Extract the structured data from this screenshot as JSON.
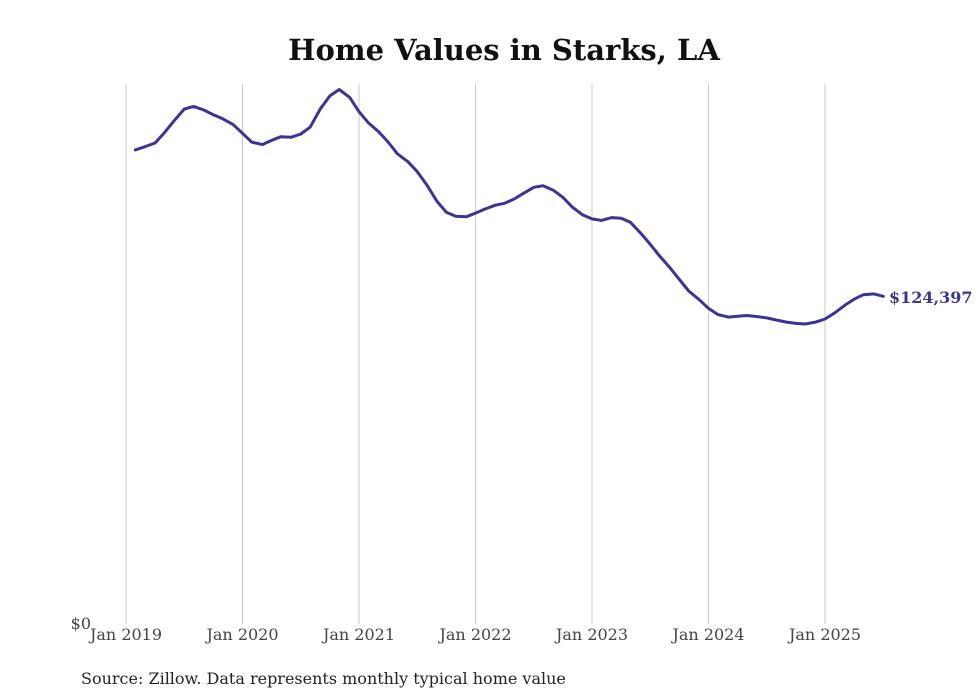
{
  "chart_data": {
    "type": "line",
    "title": "Home Values in Starks, LA",
    "xlabel": "",
    "ylabel": "",
    "y_tick_label": "$0",
    "ylim": [
      0,
      205000
    ],
    "x_ticks": [
      "Jan 2019",
      "Jan 2020",
      "Jan 2021",
      "Jan 2022",
      "Jan 2023",
      "Jan 2024",
      "Jan 2025"
    ],
    "x_tick_years": [
      2019,
      2020,
      2021,
      2022,
      2023,
      2024,
      2025
    ],
    "grid": "vertical",
    "series": [
      {
        "name": "Typical home value",
        "color": "#3b3494",
        "end_label": "$124,397",
        "points": [
          [
            2019.08,
            180000
          ],
          [
            2019.17,
            181300
          ],
          [
            2019.25,
            182600
          ],
          [
            2019.33,
            186500
          ],
          [
            2019.42,
            191400
          ],
          [
            2019.5,
            195500
          ],
          [
            2019.58,
            196500
          ],
          [
            2019.67,
            195100
          ],
          [
            2019.75,
            193300
          ],
          [
            2019.83,
            191800
          ],
          [
            2019.92,
            189600
          ],
          [
            2020.0,
            186300
          ],
          [
            2020.08,
            182900
          ],
          [
            2020.17,
            182000
          ],
          [
            2020.25,
            183600
          ],
          [
            2020.33,
            185000
          ],
          [
            2020.42,
            184800
          ],
          [
            2020.5,
            186000
          ],
          [
            2020.58,
            188600
          ],
          [
            2020.67,
            195700
          ],
          [
            2020.75,
            200500
          ],
          [
            2020.83,
            202900
          ],
          [
            2020.92,
            199900
          ],
          [
            2021.0,
            194500
          ],
          [
            2021.08,
            190300
          ],
          [
            2021.17,
            186800
          ],
          [
            2021.25,
            183000
          ],
          [
            2021.33,
            178500
          ],
          [
            2021.42,
            175500
          ],
          [
            2021.5,
            171700
          ],
          [
            2021.58,
            166800
          ],
          [
            2021.67,
            160400
          ],
          [
            2021.75,
            156300
          ],
          [
            2021.83,
            154800
          ],
          [
            2021.92,
            154600
          ],
          [
            2022.0,
            156000
          ],
          [
            2022.08,
            157500
          ],
          [
            2022.17,
            159000
          ],
          [
            2022.25,
            159700
          ],
          [
            2022.33,
            161300
          ],
          [
            2022.42,
            163700
          ],
          [
            2022.5,
            165800
          ],
          [
            2022.58,
            166400
          ],
          [
            2022.67,
            164600
          ],
          [
            2022.75,
            162000
          ],
          [
            2022.83,
            158300
          ],
          [
            2022.92,
            155300
          ],
          [
            2023.0,
            153800
          ],
          [
            2023.08,
            153200
          ],
          [
            2023.17,
            154300
          ],
          [
            2023.25,
            154000
          ],
          [
            2023.33,
            152500
          ],
          [
            2023.42,
            148300
          ],
          [
            2023.5,
            144100
          ],
          [
            2023.58,
            139700
          ],
          [
            2023.67,
            135200
          ],
          [
            2023.75,
            130800
          ],
          [
            2023.83,
            126400
          ],
          [
            2023.92,
            123100
          ],
          [
            2024.0,
            119800
          ],
          [
            2024.08,
            117500
          ],
          [
            2024.17,
            116500
          ],
          [
            2024.25,
            116800
          ],
          [
            2024.33,
            117100
          ],
          [
            2024.42,
            116700
          ],
          [
            2024.5,
            116200
          ],
          [
            2024.58,
            115400
          ],
          [
            2024.67,
            114600
          ],
          [
            2024.75,
            114100
          ],
          [
            2024.83,
            113900
          ],
          [
            2024.92,
            114600
          ],
          [
            2025.0,
            115800
          ],
          [
            2025.08,
            118000
          ],
          [
            2025.17,
            121000
          ],
          [
            2025.25,
            123300
          ],
          [
            2025.33,
            125000
          ],
          [
            2025.42,
            125300
          ],
          [
            2025.5,
            124397
          ]
        ]
      }
    ]
  },
  "source_note": "Source: Zillow. Data represents monthly typical home value"
}
